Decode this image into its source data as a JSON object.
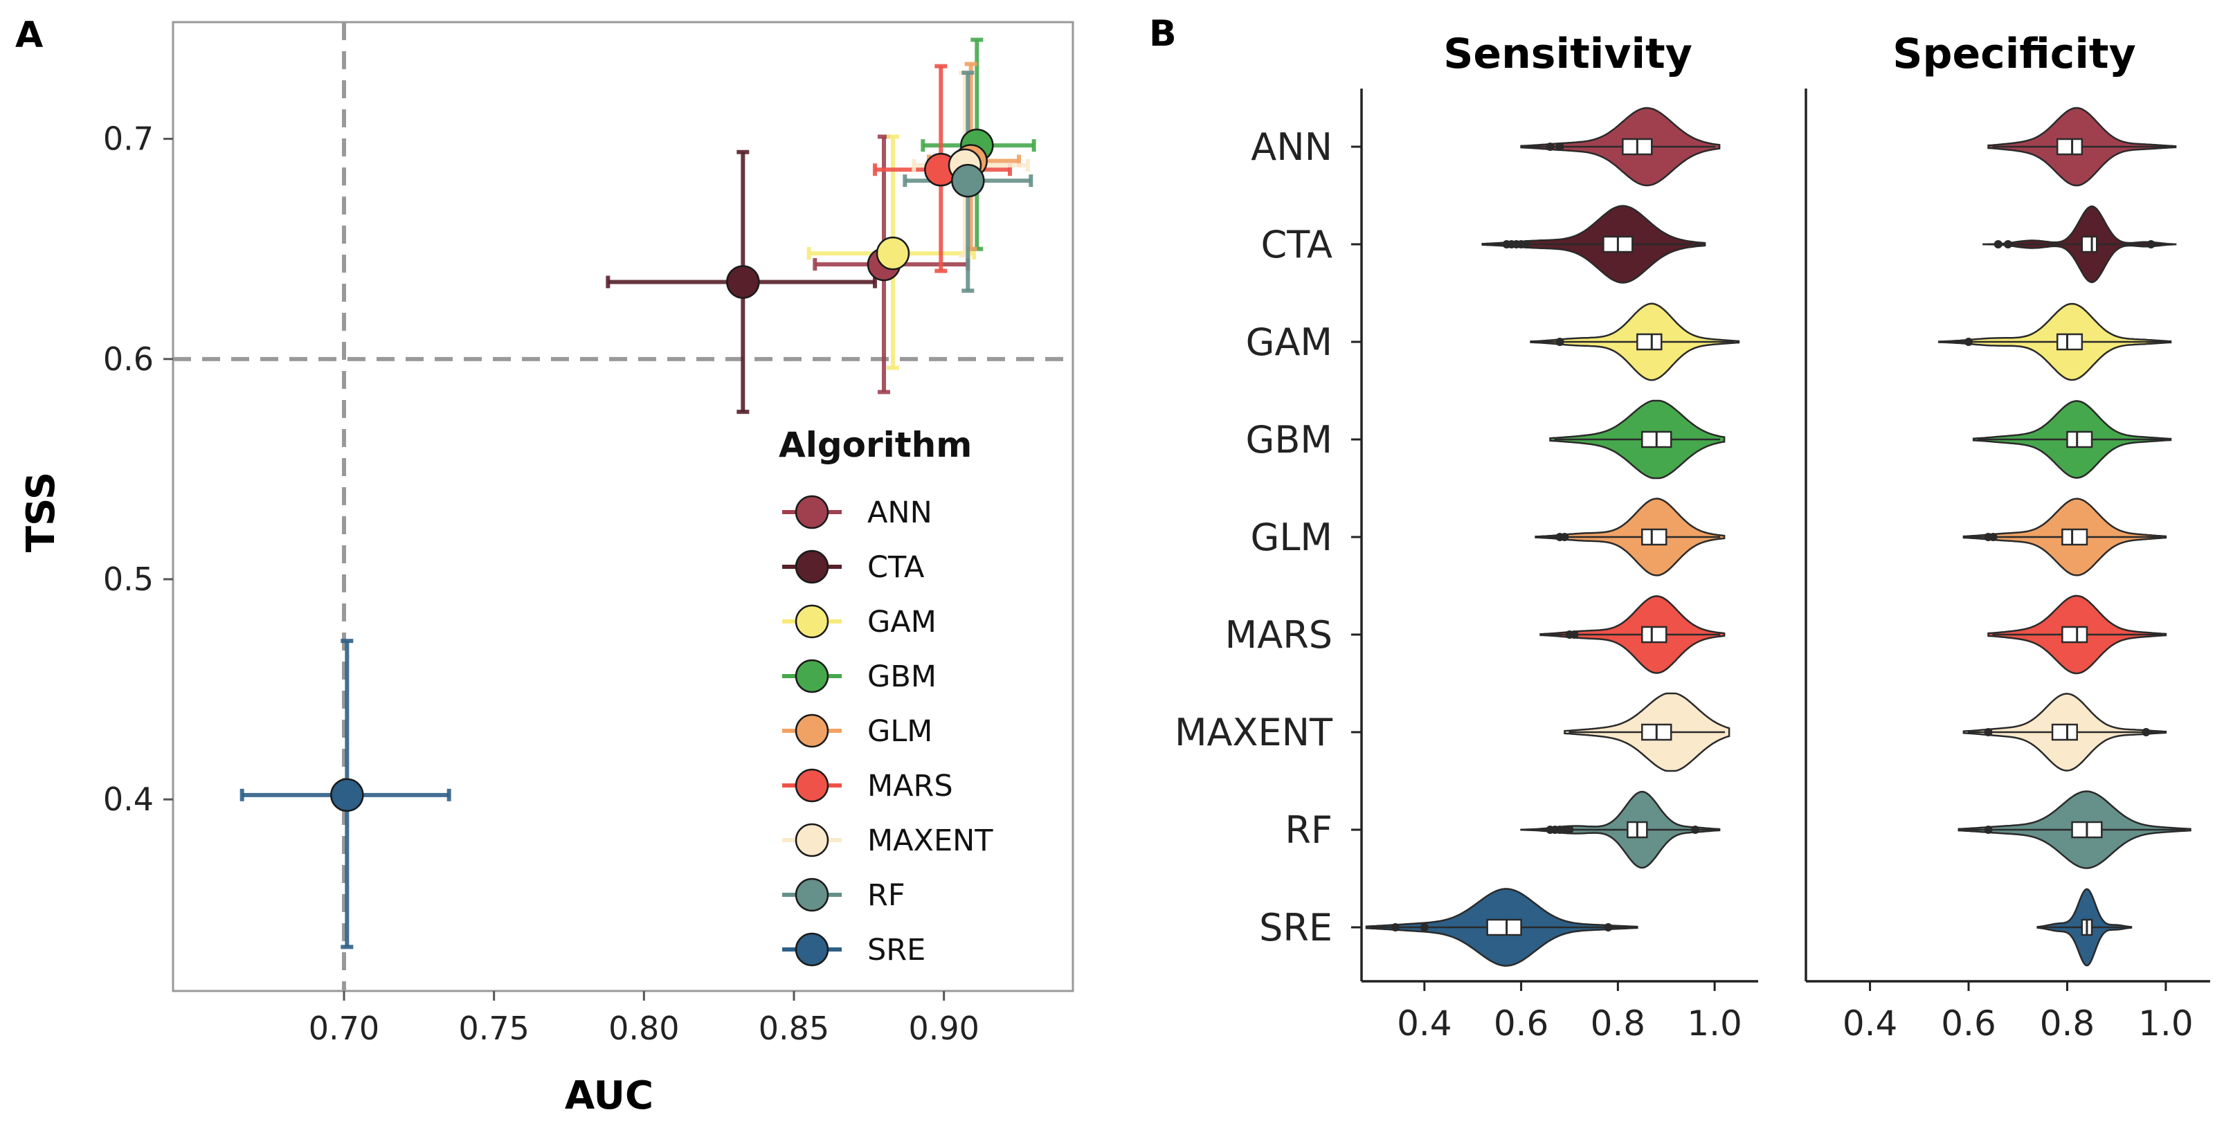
{
  "panels": {
    "a_label": "A",
    "b_label": "B"
  },
  "colors": {
    "ANN": "#a0404f",
    "CTA": "#58202a",
    "GAM": "#f6eb7a",
    "GBM": "#46a84c",
    "GLM": "#f0a264",
    "MARS": "#ee5248",
    "MAXENT": "#fbe9cc",
    "RF": "#66908a",
    "SRE": "#2d5f87",
    "refline": "#999999",
    "frame": "#999999"
  },
  "chart_data": [
    {
      "type": "scatter",
      "title": "",
      "xlabel": "AUC",
      "ylabel": "TSS",
      "xlim": [
        0.643,
        0.943
      ],
      "ylim": [
        0.313,
        0.753
      ],
      "xticks": [
        "0.70",
        "0.75",
        "0.80",
        "0.85",
        "0.90"
      ],
      "xtick_values": [
        0.7,
        0.75,
        0.8,
        0.85,
        0.9
      ],
      "yticks": [
        "0.4",
        "0.5",
        "0.6",
        "0.7"
      ],
      "ytick_values": [
        0.4,
        0.5,
        0.6,
        0.7
      ],
      "reference_lines": {
        "x": 0.7,
        "y": 0.6
      },
      "legend": {
        "title": "Algorithm",
        "position": "bottom-right"
      },
      "series": [
        {
          "name": "ANN",
          "x": 0.88,
          "y": 0.643,
          "x_err": [
            0.857,
            0.908
          ],
          "y_err": [
            0.585,
            0.701
          ]
        },
        {
          "name": "CTA",
          "x": 0.833,
          "y": 0.635,
          "x_err": [
            0.788,
            0.877
          ],
          "y_err": [
            0.576,
            0.694
          ]
        },
        {
          "name": "GAM",
          "x": 0.883,
          "y": 0.648,
          "x_err": [
            0.855,
            0.91
          ],
          "y_err": [
            0.596,
            0.701
          ]
        },
        {
          "name": "GBM",
          "x": 0.911,
          "y": 0.697,
          "x_err": [
            0.893,
            0.93
          ],
          "y_err": [
            0.65,
            0.745
          ]
        },
        {
          "name": "GLM",
          "x": 0.909,
          "y": 0.69,
          "x_err": [
            0.895,
            0.925
          ],
          "y_err": [
            0.65,
            0.734
          ]
        },
        {
          "name": "MARS",
          "x": 0.899,
          "y": 0.686,
          "x_err": [
            0.877,
            0.922
          ],
          "y_err": [
            0.64,
            0.733
          ]
        },
        {
          "name": "MAXENT",
          "x": 0.907,
          "y": 0.688,
          "x_err": [
            0.89,
            0.928
          ],
          "y_err": [
            0.647,
            0.73
          ]
        },
        {
          "name": "RF",
          "x": 0.908,
          "y": 0.681,
          "x_err": [
            0.887,
            0.929
          ],
          "y_err": [
            0.631,
            0.73
          ]
        },
        {
          "name": "SRE",
          "x": 0.701,
          "y": 0.402,
          "x_err": [
            0.666,
            0.735
          ],
          "y_err": [
            0.333,
            0.472
          ]
        }
      ]
    },
    {
      "type": "violin",
      "panel_titles": [
        "Sensitivity",
        "Specificity"
      ],
      "categories": [
        "ANN",
        "CTA",
        "GAM",
        "GBM",
        "GLM",
        "MARS",
        "MAXENT",
        "RF",
        "SRE"
      ],
      "xlim": [
        0.27,
        1.09
      ],
      "xticks": [
        "0.4",
        "0.6",
        "0.8",
        "1.0"
      ],
      "xtick_values": [
        0.4,
        0.6,
        0.8,
        1.0
      ],
      "sensitivity": [
        {
          "name": "ANN",
          "min": 0.6,
          "q1": 0.81,
          "median": 0.84,
          "q3": 0.87,
          "max": 1.01,
          "peak": 0.86,
          "outliers": [
            0.66,
            0.68
          ]
        },
        {
          "name": "CTA",
          "min": 0.52,
          "q1": 0.77,
          "median": 0.8,
          "q3": 0.83,
          "max": 0.98,
          "peak": 0.81,
          "outliers": [
            0.57,
            0.58,
            0.59,
            0.6,
            0.61
          ]
        },
        {
          "name": "GAM",
          "min": 0.62,
          "q1": 0.84,
          "median": 0.87,
          "q3": 0.89,
          "max": 1.05,
          "peak": 0.87,
          "outliers": [
            0.68
          ]
        },
        {
          "name": "GBM",
          "min": 0.66,
          "q1": 0.85,
          "median": 0.88,
          "q3": 0.91,
          "max": 1.02,
          "peak": 0.88,
          "outliers": []
        },
        {
          "name": "GLM",
          "min": 0.63,
          "q1": 0.85,
          "median": 0.87,
          "q3": 0.9,
          "max": 1.02,
          "peak": 0.88,
          "outliers": [
            0.68,
            0.69
          ]
        },
        {
          "name": "MARS",
          "min": 0.64,
          "q1": 0.85,
          "median": 0.87,
          "q3": 0.9,
          "max": 1.02,
          "peak": 0.88,
          "outliers": [
            0.7,
            0.71
          ]
        },
        {
          "name": "MAXENT",
          "min": 0.69,
          "q1": 0.85,
          "median": 0.88,
          "q3": 0.91,
          "max": 1.03,
          "peak": 0.91,
          "outliers": []
        },
        {
          "name": "RF",
          "min": 0.6,
          "q1": 0.82,
          "median": 0.84,
          "q3": 0.86,
          "max": 1.01,
          "peak": 0.85,
          "outliers": [
            0.66,
            0.67,
            0.68,
            0.69,
            0.7,
            0.96
          ]
        },
        {
          "name": "SRE",
          "min": 0.28,
          "q1": 0.53,
          "median": 0.57,
          "q3": 0.6,
          "max": 0.84,
          "peak": 0.57,
          "outliers": [
            0.34,
            0.4,
            0.78
          ]
        }
      ],
      "specificity": [
        {
          "name": "ANN",
          "min": 0.64,
          "q1": 0.78,
          "median": 0.81,
          "q3": 0.83,
          "max": 1.02,
          "peak": 0.82,
          "outliers": []
        },
        {
          "name": "CTA",
          "min": 0.63,
          "q1": 0.83,
          "median": 0.85,
          "q3": 0.86,
          "max": 1.02,
          "peak": 0.85,
          "outliers": [
            0.66,
            0.68,
            0.97
          ]
        },
        {
          "name": "GAM",
          "min": 0.54,
          "q1": 0.78,
          "median": 0.8,
          "q3": 0.83,
          "max": 1.01,
          "peak": 0.81,
          "outliers": [
            0.6
          ]
        },
        {
          "name": "GBM",
          "min": 0.61,
          "q1": 0.8,
          "median": 0.82,
          "q3": 0.85,
          "max": 1.01,
          "peak": 0.82,
          "outliers": []
        },
        {
          "name": "GLM",
          "min": 0.59,
          "q1": 0.79,
          "median": 0.81,
          "q3": 0.84,
          "max": 1.0,
          "peak": 0.82,
          "outliers": [
            0.64,
            0.65
          ]
        },
        {
          "name": "MARS",
          "min": 0.64,
          "q1": 0.79,
          "median": 0.82,
          "q3": 0.84,
          "max": 1.0,
          "peak": 0.82,
          "outliers": []
        },
        {
          "name": "MAXENT",
          "min": 0.59,
          "q1": 0.77,
          "median": 0.8,
          "q3": 0.82,
          "max": 1.0,
          "peak": 0.8,
          "outliers": [
            0.64,
            0.96
          ]
        },
        {
          "name": "RF",
          "min": 0.58,
          "q1": 0.81,
          "median": 0.84,
          "q3": 0.87,
          "max": 1.05,
          "peak": 0.84,
          "outliers": [
            0.64
          ]
        },
        {
          "name": "SRE",
          "min": 0.74,
          "q1": 0.83,
          "median": 0.84,
          "q3": 0.85,
          "max": 0.93,
          "peak": 0.84,
          "outliers": []
        }
      ]
    }
  ]
}
